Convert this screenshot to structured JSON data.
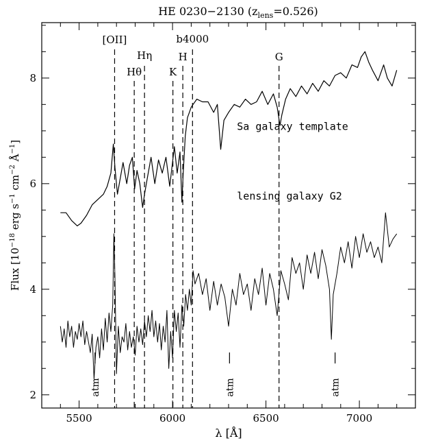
{
  "chart_data": {
    "type": "line",
    "title_main": "HE 0230−2130 (z",
    "title_sub": "lens",
    "title_end": "=0.526)",
    "xlabel": "λ [Å]",
    "ylabel_main": "Flux [10",
    "ylabel_exp1": "−18",
    "ylabel_unit1": " erg s",
    "ylabel_exp2": "−1",
    "ylabel_unit2": " cm",
    "ylabel_exp3": "−2",
    "ylabel_unit3": " Å",
    "ylabel_exp4": "−1",
    "ylabel_end": "]",
    "xlim": [
      5300,
      7300
    ],
    "ylim": [
      1.75,
      9.05
    ],
    "xticks": [
      5500,
      6000,
      6500,
      7000
    ],
    "yticks": [
      2,
      4,
      6,
      8
    ],
    "xtick_labels": [
      "5500",
      "6000",
      "6500",
      "7000"
    ],
    "ytick_labels": [
      "2",
      "4",
      "6",
      "8"
    ],
    "series": [
      {
        "name": "Sa galaxy template",
        "x": [
          5400,
          5430,
          5460,
          5490,
          5510,
          5540,
          5570,
          5600,
          5630,
          5650,
          5670,
          5683,
          5692,
          5705,
          5720,
          5735,
          5755,
          5770,
          5785,
          5797,
          5810,
          5825,
          5840,
          5850,
          5865,
          5885,
          5905,
          5925,
          5945,
          5965,
          5985,
          5998,
          6010,
          6025,
          6040,
          6050,
          6057,
          6068,
          6080,
          6090,
          6100,
          6110,
          6130,
          6160,
          6190,
          6220,
          6240,
          6258,
          6275,
          6300,
          6330,
          6360,
          6390,
          6420,
          6450,
          6480,
          6510,
          6540,
          6560,
          6575,
          6585,
          6605,
          6630,
          6660,
          6690,
          6720,
          6750,
          6780,
          6810,
          6840,
          6870,
          6900,
          6930,
          6960,
          6990,
          7010,
          7030,
          7050,
          7070,
          7100,
          7130,
          7150,
          7175,
          7200
        ],
        "y": [
          5.45,
          5.45,
          5.3,
          5.2,
          5.25,
          5.4,
          5.6,
          5.7,
          5.8,
          5.95,
          6.2,
          6.75,
          6.3,
          5.8,
          6.1,
          6.4,
          6.0,
          6.35,
          6.5,
          5.9,
          6.25,
          6.0,
          5.55,
          5.8,
          6.1,
          6.5,
          6.0,
          6.45,
          6.2,
          6.5,
          5.95,
          6.35,
          6.7,
          6.2,
          6.6,
          5.65,
          6.2,
          6.9,
          7.25,
          7.35,
          7.45,
          7.5,
          7.6,
          7.55,
          7.55,
          7.35,
          7.5,
          6.65,
          7.2,
          7.35,
          7.5,
          7.45,
          7.6,
          7.5,
          7.55,
          7.75,
          7.5,
          7.7,
          7.45,
          7.1,
          7.3,
          7.6,
          7.8,
          7.65,
          7.85,
          7.7,
          7.9,
          7.75,
          7.95,
          7.85,
          8.05,
          8.1,
          8.0,
          8.25,
          8.2,
          8.4,
          8.5,
          8.3,
          8.15,
          7.95,
          8.25,
          8.0,
          7.85,
          8.15
        ]
      },
      {
        "name": "lensing galaxy G2",
        "x": [
          5400,
          5410,
          5420,
          5430,
          5440,
          5450,
          5460,
          5470,
          5480,
          5490,
          5500,
          5510,
          5520,
          5530,
          5540,
          5550,
          5560,
          5570,
          5580,
          5590,
          5600,
          5610,
          5620,
          5630,
          5640,
          5650,
          5660,
          5670,
          5680,
          5686,
          5692,
          5700,
          5710,
          5720,
          5730,
          5740,
          5750,
          5760,
          5770,
          5780,
          5790,
          5800,
          5810,
          5820,
          5830,
          5840,
          5850,
          5860,
          5870,
          5880,
          5890,
          5900,
          5910,
          5920,
          5930,
          5940,
          5950,
          5960,
          5970,
          5980,
          5990,
          6000,
          6010,
          6020,
          6030,
          6040,
          6050,
          6060,
          6070,
          6080,
          6090,
          6100,
          6110,
          6120,
          6140,
          6160,
          6180,
          6200,
          6220,
          6240,
          6260,
          6280,
          6300,
          6320,
          6340,
          6360,
          6380,
          6400,
          6420,
          6440,
          6460,
          6480,
          6500,
          6520,
          6540,
          6560,
          6580,
          6600,
          6620,
          6640,
          6660,
          6680,
          6700,
          6720,
          6740,
          6760,
          6780,
          6800,
          6820,
          6840,
          6850,
          6860,
          6880,
          6900,
          6920,
          6940,
          6960,
          6980,
          7000,
          7020,
          7040,
          7060,
          7080,
          7100,
          7120,
          7140,
          7160,
          7180,
          7200
        ],
        "y": [
          3.3,
          3.0,
          3.25,
          2.9,
          3.4,
          3.1,
          3.3,
          2.9,
          3.2,
          3.05,
          3.35,
          3.1,
          3.4,
          2.95,
          3.2,
          3.0,
          2.8,
          3.15,
          2.3,
          2.9,
          3.1,
          2.7,
          3.25,
          2.85,
          3.45,
          3.0,
          3.55,
          3.2,
          3.7,
          5.05,
          4.2,
          2.4,
          3.3,
          2.8,
          3.1,
          3.0,
          3.35,
          2.85,
          3.2,
          2.9,
          3.1,
          2.75,
          3.3,
          3.0,
          3.25,
          2.95,
          3.4,
          3.1,
          3.5,
          3.2,
          3.6,
          3.1,
          3.4,
          3.0,
          3.35,
          2.85,
          3.3,
          3.0,
          3.6,
          2.5,
          3.2,
          2.7,
          3.6,
          3.2,
          3.55,
          2.9,
          3.7,
          3.3,
          3.9,
          3.6,
          4.0,
          3.7,
          4.35,
          4.1,
          4.3,
          3.9,
          4.2,
          3.6,
          4.15,
          3.7,
          4.1,
          3.85,
          3.3,
          4.0,
          3.7,
          4.3,
          3.9,
          4.1,
          3.6,
          4.2,
          3.9,
          4.4,
          3.7,
          4.3,
          4.0,
          3.5,
          4.35,
          4.1,
          3.8,
          4.6,
          4.3,
          4.5,
          4.0,
          4.65,
          4.3,
          4.7,
          4.2,
          4.75,
          4.45,
          4.0,
          3.05,
          3.9,
          4.3,
          4.8,
          4.5,
          4.9,
          4.4,
          5.0,
          4.6,
          5.05,
          4.7,
          4.9,
          4.6,
          4.8,
          4.5,
          5.45,
          4.8,
          4.95,
          5.05
        ]
      }
    ],
    "feature_lines": [
      {
        "label": "[OII]",
        "x": 5690
      },
      {
        "label": "Hθ",
        "x": 5795
      },
      {
        "label": "Hη",
        "x": 5850
      },
      {
        "label": "K",
        "x": 6002
      },
      {
        "label": "H",
        "x": 6055
      },
      {
        "label": "b4000",
        "x": 6107
      },
      {
        "label": "G",
        "x": 6570
      }
    ],
    "atm_markers": [
      {
        "label": "atm",
        "x": 5585
      },
      {
        "label": "atm",
        "x": 6305
      },
      {
        "label": "atm",
        "x": 6870
      }
    ]
  }
}
